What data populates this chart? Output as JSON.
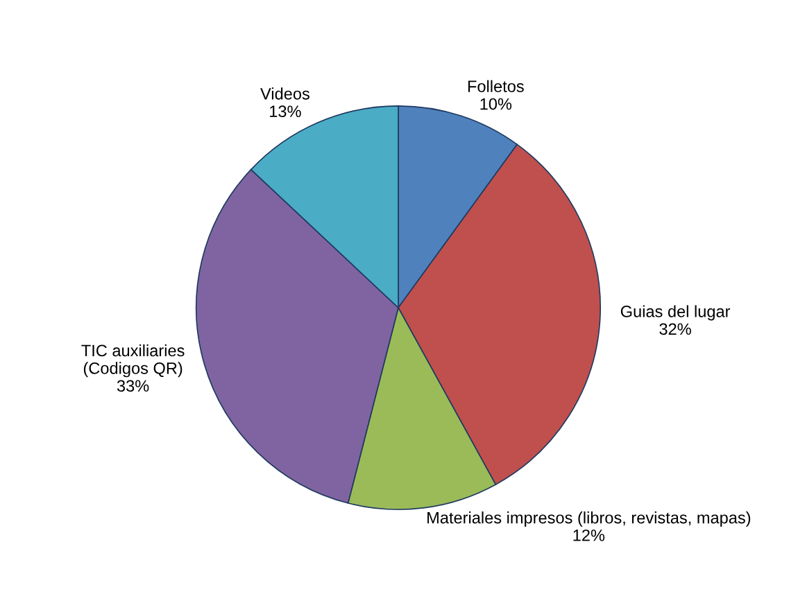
{
  "chart_data": {
    "type": "pie",
    "categories": [
      "Folletos",
      "Guias del lugar",
      "Materiales impresos (libros, revistas, mapas)",
      "TIC auxiliaries\n(Codigos QR)",
      "Videos"
    ],
    "values": [
      10,
      32,
      12,
      33,
      13
    ],
    "value_labels": [
      "10%",
      "32%",
      "12%",
      "33%",
      "13%"
    ],
    "colors": [
      "#4f81bd",
      "#c0504d",
      "#9bbb59",
      "#8064a2",
      "#4bacc6"
    ]
  }
}
